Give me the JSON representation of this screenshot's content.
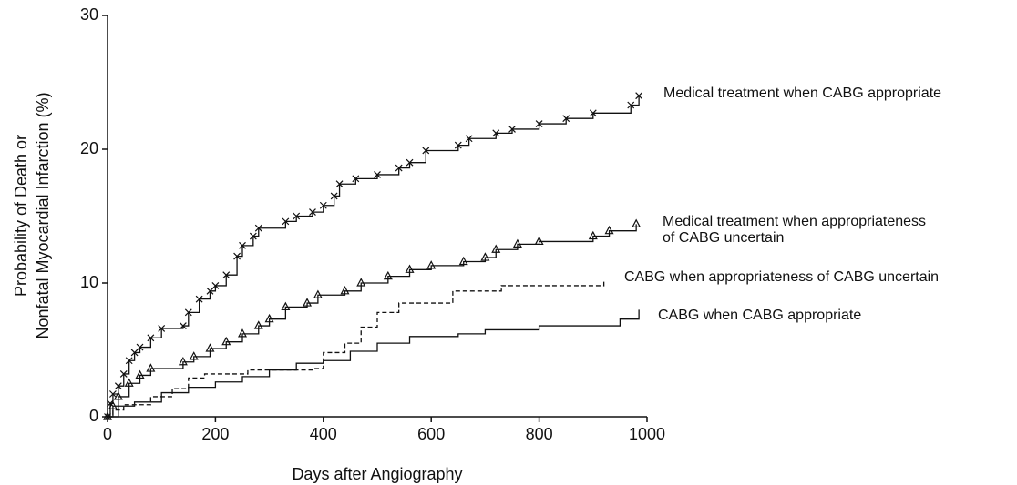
{
  "chart_data": {
    "type": "line",
    "steps": true,
    "xlabel": "Days after Angiography",
    "ylabel": [
      "Probability of Death or",
      "Nonfatal Myocardial Infarction (%)"
    ],
    "xlim": [
      0,
      1000
    ],
    "ylim": [
      0,
      30
    ],
    "xticks": [
      0,
      200,
      400,
      600,
      800,
      1000
    ],
    "yticks": [
      0,
      10,
      20,
      30
    ],
    "grid": false,
    "legend": "line-end",
    "series": [
      {
        "name": "Medical treatment when CABG appropriate",
        "color": "#111111",
        "line_style": "solid",
        "marker": "x",
        "x": [
          0,
          5,
          10,
          20,
          30,
          40,
          50,
          60,
          80,
          100,
          140,
          150,
          170,
          190,
          200,
          220,
          240,
          250,
          270,
          280,
          330,
          350,
          380,
          400,
          420,
          430,
          460,
          500,
          540,
          560,
          590,
          650,
          670,
          720,
          750,
          800,
          850,
          900,
          970,
          985
        ],
        "y": [
          0,
          1,
          1.7,
          2.3,
          3.2,
          4.2,
          4.8,
          5.2,
          5.9,
          6.6,
          6.8,
          7.8,
          8.8,
          9.4,
          9.8,
          10.6,
          12,
          12.8,
          13.5,
          14.1,
          14.6,
          15,
          15.3,
          15.8,
          16.5,
          17.4,
          17.8,
          18.1,
          18.6,
          19,
          19.9,
          20.3,
          20.8,
          21.2,
          21.5,
          21.9,
          22.3,
          22.7,
          23.3,
          24
        ]
      },
      {
        "name": "Medical treatment when appropriateness of CABG uncertain",
        "color": "#111111",
        "line_style": "solid",
        "marker": "triangle",
        "x": [
          0,
          10,
          20,
          40,
          60,
          80,
          140,
          160,
          190,
          220,
          250,
          280,
          300,
          330,
          370,
          390,
          440,
          470,
          520,
          560,
          600,
          660,
          700,
          720,
          760,
          800,
          900,
          930,
          980
        ],
        "y": [
          0,
          0.8,
          1.5,
          2.5,
          3.1,
          3.6,
          4.1,
          4.5,
          5.1,
          5.6,
          6.2,
          6.8,
          7.3,
          8.2,
          8.5,
          9.1,
          9.4,
          10,
          10.5,
          11,
          11.3,
          11.6,
          11.9,
          12.5,
          12.9,
          13.1,
          13.5,
          13.9,
          14.4
        ]
      },
      {
        "name": "CABG when appropriateness of CABG uncertain",
        "color": "#111111",
        "line_style": "dashed",
        "marker": "none",
        "x": [
          0,
          10,
          30,
          80,
          120,
          150,
          180,
          260,
          380,
          400,
          440,
          470,
          500,
          540,
          640,
          730,
          920
        ],
        "y": [
          0,
          0.5,
          0.9,
          1.5,
          2.1,
          2.9,
          3.2,
          3.5,
          3.6,
          4.8,
          5.5,
          6.7,
          7.8,
          8.5,
          9.4,
          9.8,
          10.3
        ]
      },
      {
        "name": "CABG when CABG appropriate",
        "color": "#111111",
        "line_style": "solid",
        "marker": "none",
        "x": [
          0,
          20,
          50,
          100,
          150,
          200,
          250,
          300,
          350,
          400,
          450,
          500,
          560,
          650,
          700,
          800,
          950,
          985
        ],
        "y": [
          0,
          0.8,
          1.1,
          1.8,
          2.2,
          2.6,
          3,
          3.5,
          4,
          4.2,
          4.9,
          5.5,
          6,
          6.2,
          6.5,
          6.8,
          7.3,
          8
        ]
      }
    ]
  }
}
